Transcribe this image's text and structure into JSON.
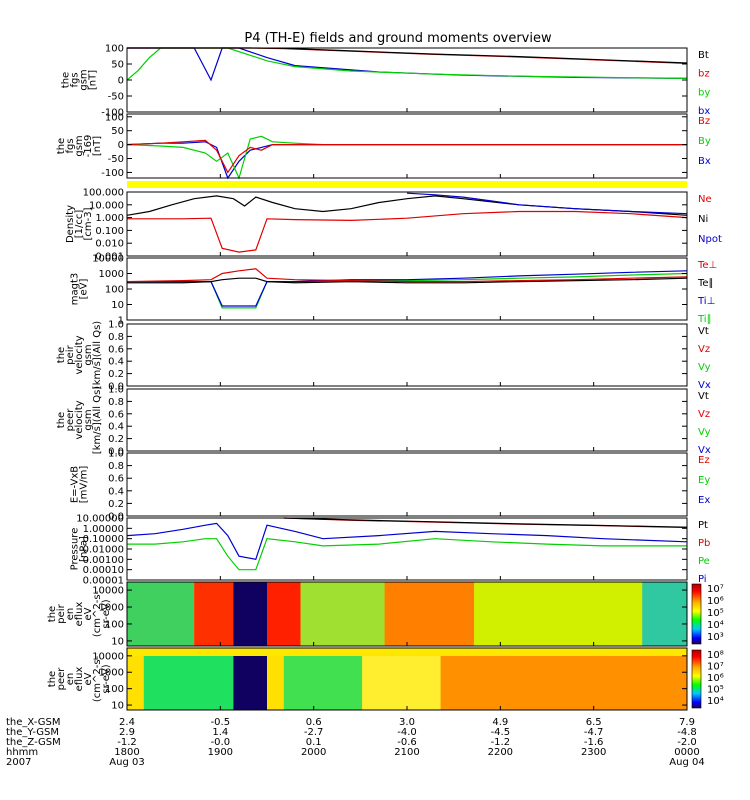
{
  "title": "P4 (TH-E) fields and ground moments overview",
  "colors": {
    "black": "#000000",
    "red": "#e00000",
    "green": "#00d000",
    "blue": "#0000d0",
    "yellow": "#ffff00"
  },
  "chart_data": [
    {
      "type": "line",
      "name": "fgs",
      "ylabel_lines": [
        "the",
        "fgs",
        "gsm",
        "[nT]"
      ],
      "ylim": [
        -100,
        100
      ],
      "yticks": [
        "100",
        "50",
        "0",
        "-50",
        "-100"
      ],
      "legend": [
        {
          "label": "Bt",
          "color": "#000000"
        },
        {
          "label": "bz",
          "color": "#e00000"
        },
        {
          "label": "by",
          "color": "#00d000"
        },
        {
          "label": "bx",
          "color": "#0000d0"
        }
      ],
      "series": [
        {
          "name": "bx",
          "color": "#0000d0",
          "x": [
            0.0,
            0.12,
            0.15,
            0.17,
            0.2,
            0.25,
            0.3,
            0.45,
            0.6,
            0.8,
            1.0
          ],
          "y": [
            100,
            100,
            0,
            100,
            100,
            70,
            45,
            25,
            15,
            8,
            5
          ]
        },
        {
          "name": "by",
          "color": "#00d000",
          "x": [
            0.0,
            0.02,
            0.04,
            0.06,
            0.08,
            0.1,
            0.14,
            0.18,
            0.25,
            0.3,
            0.4,
            0.55,
            0.7,
            0.85,
            1.0
          ],
          "y": [
            0,
            30,
            70,
            100,
            100,
            100,
            100,
            100,
            60,
            42,
            28,
            18,
            12,
            8,
            5
          ]
        },
        {
          "name": "bz",
          "color": "#e00000",
          "x": [
            0.0,
            0.14,
            0.18,
            0.22,
            0.28,
            0.4,
            0.55,
            0.7,
            0.85,
            1.0
          ],
          "y": [
            100,
            100,
            100,
            100,
            98,
            90,
            80,
            72,
            62,
            52
          ]
        },
        {
          "name": "Bt",
          "color": "#000000",
          "x": [
            0.0,
            0.14,
            0.18,
            0.22,
            0.28,
            0.4,
            0.55,
            0.7,
            0.85,
            1.0
          ],
          "y": [
            100,
            100,
            100,
            100,
            99,
            91,
            81,
            73,
            63,
            53
          ]
        }
      ]
    },
    {
      "type": "line",
      "name": "fgs-169",
      "ylabel_lines": [
        "the",
        "fgs",
        "gsm",
        "-169",
        "[nT]"
      ],
      "ylim": [
        -120,
        110
      ],
      "yticks": [
        "100",
        "50",
        "0",
        "-50",
        "-100"
      ],
      "legend": [
        {
          "label": "Bz",
          "color": "#e00000"
        },
        {
          "label": "By",
          "color": "#00d000"
        },
        {
          "label": "Bx",
          "color": "#0000d0"
        }
      ],
      "series": [
        {
          "name": "Bx",
          "color": "#0000d0",
          "x": [
            0.0,
            0.06,
            0.1,
            0.14,
            0.16,
            0.18,
            0.2,
            0.22,
            0.24,
            0.26,
            0.3,
            0.35,
            0.45,
            0.6,
            0.8,
            1.0
          ],
          "y": [
            0,
            5,
            5,
            10,
            -10,
            -120,
            -60,
            -20,
            -10,
            0,
            0,
            0,
            0,
            0,
            0,
            0
          ]
        },
        {
          "name": "By",
          "color": "#00d000",
          "x": [
            0.0,
            0.06,
            0.1,
            0.14,
            0.16,
            0.18,
            0.2,
            0.22,
            0.24,
            0.26,
            0.3,
            0.35,
            0.45,
            0.6,
            0.8,
            1.0
          ],
          "y": [
            0,
            -5,
            -10,
            -30,
            -60,
            -30,
            -120,
            20,
            30,
            10,
            5,
            0,
            0,
            0,
            0,
            0
          ]
        },
        {
          "name": "Bz",
          "color": "#e00000",
          "x": [
            0.0,
            0.06,
            0.1,
            0.14,
            0.16,
            0.18,
            0.2,
            0.22,
            0.24,
            0.26,
            0.3,
            0.35,
            0.45,
            0.6,
            0.8,
            1.0
          ],
          "y": [
            0,
            5,
            10,
            15,
            -20,
            -100,
            -40,
            -10,
            -20,
            0,
            0,
            0,
            0,
            0,
            0,
            0
          ]
        }
      ]
    },
    {
      "type": "line",
      "name": "density",
      "ylabel_lines": [
        "Density",
        "[1/cc]",
        "[cm-3]"
      ],
      "scale": "log",
      "ylim": [
        0.001,
        100
      ],
      "yticks": [
        "100.000",
        "10.000",
        "1.000",
        "0.100",
        "0.010",
        "0.001"
      ],
      "legend": [
        {
          "label": "Ne",
          "color": "#e00000"
        },
        {
          "label": "Ni",
          "color": "#000000"
        },
        {
          "label": "Npot",
          "color": "#0000d0"
        }
      ],
      "series": [
        {
          "name": "Ni",
          "color": "#000000",
          "x": [
            0.0,
            0.04,
            0.08,
            0.12,
            0.16,
            0.19,
            0.21,
            0.23,
            0.26,
            0.3,
            0.35,
            0.4,
            0.45,
            0.5,
            0.55,
            0.6,
            0.7,
            0.8,
            0.9,
            1.0
          ],
          "y": [
            1.5,
            3,
            10,
            30,
            50,
            30,
            8,
            40,
            15,
            5,
            3,
            5,
            15,
            30,
            50,
            30,
            10,
            5,
            3,
            1.5
          ]
        },
        {
          "name": "Ne",
          "color": "#e00000",
          "x": [
            0.0,
            0.1,
            0.15,
            0.17,
            0.2,
            0.23,
            0.25,
            0.3,
            0.4,
            0.5,
            0.6,
            0.7,
            0.8,
            0.9,
            1.0
          ],
          "y": [
            0.8,
            0.8,
            0.9,
            0.004,
            0.002,
            0.003,
            0.8,
            0.7,
            0.6,
            0.9,
            2,
            3,
            3,
            2,
            1
          ]
        },
        {
          "name": "Npot",
          "color": "#0000d0",
          "x": [
            0.5,
            0.55,
            0.6,
            0.65,
            0.7,
            0.8,
            0.9,
            1.0
          ],
          "y": [
            80,
            60,
            40,
            20,
            10,
            5,
            3,
            2
          ]
        }
      ]
    },
    {
      "type": "line",
      "name": "magt3",
      "ylabel_lines": [
        "magt3",
        "[eV]"
      ],
      "scale": "log",
      "ylim": [
        1,
        10000
      ],
      "yticks": [
        "10000",
        "1000",
        "100",
        "10",
        "1"
      ],
      "legend": [
        {
          "label": "Te⊥",
          "color": "#e00000"
        },
        {
          "label": "Te∥",
          "color": "#000000"
        },
        {
          "label": "Ti⊥",
          "color": "#0000d0"
        },
        {
          "label": "Ti∥",
          "color": "#00d000"
        }
      ],
      "series": [
        {
          "name": "Ti∥",
          "color": "#00d000",
          "x": [
            0.0,
            0.1,
            0.15,
            0.17,
            0.2,
            0.23,
            0.25,
            0.3,
            0.4,
            0.5,
            0.6,
            0.7,
            0.8,
            0.9,
            1.0
          ],
          "y": [
            300,
            300,
            300,
            6,
            6,
            6,
            300,
            300,
            350,
            350,
            400,
            500,
            600,
            800,
            1000
          ]
        },
        {
          "name": "Ti⊥",
          "color": "#0000d0",
          "x": [
            0.0,
            0.1,
            0.15,
            0.17,
            0.2,
            0.23,
            0.25,
            0.3,
            0.4,
            0.5,
            0.6,
            0.7,
            0.8,
            0.9,
            1.0
          ],
          "y": [
            300,
            300,
            300,
            8,
            8,
            8,
            300,
            300,
            400,
            400,
            500,
            700,
            900,
            1200,
            1500
          ]
        },
        {
          "name": "Te∥",
          "color": "#000000",
          "x": [
            0.0,
            0.1,
            0.15,
            0.17,
            0.2,
            0.23,
            0.25,
            0.3,
            0.4,
            0.5,
            0.6,
            0.7,
            0.8,
            0.9,
            1.0
          ],
          "y": [
            250,
            250,
            300,
            400,
            500,
            500,
            300,
            250,
            300,
            250,
            250,
            300,
            350,
            400,
            500
          ]
        },
        {
          "name": "Te⊥",
          "color": "#e00000",
          "x": [
            0.0,
            0.1,
            0.15,
            0.17,
            0.2,
            0.23,
            0.25,
            0.3,
            0.4,
            0.5,
            0.6,
            0.7,
            0.8,
            0.9,
            1.0
          ],
          "y": [
            300,
            350,
            400,
            1000,
            1500,
            2000,
            500,
            400,
            350,
            300,
            300,
            350,
            400,
            500,
            600
          ]
        }
      ]
    },
    {
      "type": "line",
      "name": "peir-velocity",
      "ylabel_lines": [
        "the",
        "peir",
        "velocity",
        "gsm",
        "[km/s](All Qs)"
      ],
      "ylim": [
        0,
        1
      ],
      "yticks": [
        "1.0",
        "0.8",
        "0.6",
        "0.4",
        "0.2",
        "0.0"
      ],
      "legend": [
        {
          "label": "Vt",
          "color": "#000000"
        },
        {
          "label": "Vz",
          "color": "#e00000"
        },
        {
          "label": "Vy",
          "color": "#00d000"
        },
        {
          "label": "Vx",
          "color": "#0000d0"
        }
      ],
      "series": []
    },
    {
      "type": "line",
      "name": "peer-velocity",
      "ylabel_lines": [
        "the",
        "peer",
        "velocity",
        "gsm",
        "[km/s](All Qs)"
      ],
      "ylim": [
        0,
        1
      ],
      "yticks": [
        "1.0",
        "0.8",
        "0.6",
        "0.4",
        "0.2",
        "0.0"
      ],
      "legend": [
        {
          "label": "Vt",
          "color": "#000000"
        },
        {
          "label": "Vz",
          "color": "#e00000"
        },
        {
          "label": "Vy",
          "color": "#00d000"
        },
        {
          "label": "Vx",
          "color": "#0000d0"
        }
      ],
      "series": []
    },
    {
      "type": "line",
      "name": "electric-field",
      "ylabel_lines": [
        "E=-VxB",
        "[mV/m]"
      ],
      "ylim": [
        0,
        1
      ],
      "yticks": [
        "1.0",
        "0.8",
        "0.6",
        "0.4",
        "0.2",
        "0.0"
      ],
      "legend": [
        {
          "label": "Ez",
          "color": "#e00000"
        },
        {
          "label": "Ey",
          "color": "#00d000"
        },
        {
          "label": "Ex",
          "color": "#0000d0"
        }
      ],
      "series": []
    },
    {
      "type": "line",
      "name": "pressure",
      "ylabel_lines": [
        "Pressure",
        "[nPa]"
      ],
      "scale": "log",
      "ylim": [
        1e-05,
        10
      ],
      "yticks": [
        "10.00000",
        "1.00000",
        "0.10000",
        "0.01000",
        "0.00100",
        "0.00010",
        "0.00001"
      ],
      "legend": [
        {
          "label": "Pt",
          "color": "#000000"
        },
        {
          "label": "Pb",
          "color": "#e00000"
        },
        {
          "label": "Pe",
          "color": "#00d000"
        },
        {
          "label": "Pi",
          "color": "#0000d0"
        }
      ],
      "series": [
        {
          "name": "Pi",
          "color": "#0000d0",
          "x": [
            0.0,
            0.05,
            0.1,
            0.14,
            0.16,
            0.18,
            0.2,
            0.23,
            0.25,
            0.3,
            0.35,
            0.45,
            0.55,
            0.65,
            0.75,
            0.85,
            1.0
          ],
          "y": [
            0.2,
            0.3,
            0.8,
            2,
            3,
            0.2,
            0.002,
            0.001,
            2,
            0.5,
            0.1,
            0.2,
            0.5,
            0.3,
            0.2,
            0.1,
            0.05
          ]
        },
        {
          "name": "Pe",
          "color": "#00d000",
          "x": [
            0.0,
            0.05,
            0.1,
            0.14,
            0.16,
            0.18,
            0.2,
            0.23,
            0.25,
            0.3,
            0.35,
            0.45,
            0.55,
            0.65,
            0.75,
            0.85,
            1.0
          ],
          "y": [
            0.03,
            0.03,
            0.05,
            0.1,
            0.1,
            0.002,
            0.0001,
            0.0001,
            0.1,
            0.05,
            0.02,
            0.03,
            0.1,
            0.05,
            0.03,
            0.02,
            0.02
          ]
        },
        {
          "name": "Pb",
          "color": "#e00000",
          "x": [
            0.28,
            0.4,
            0.55,
            0.7,
            0.85,
            1.0
          ],
          "y": [
            12,
            6,
            4,
            2.5,
            1.8,
            1.2
          ]
        },
        {
          "name": "Pt",
          "color": "#000000",
          "x": [
            0.28,
            0.4,
            0.55,
            0.7,
            0.85,
            1.0
          ],
          "y": [
            13,
            6.5,
            4.3,
            2.7,
            1.9,
            1.3
          ]
        }
      ]
    },
    {
      "type": "heatmap",
      "name": "peir-spectrogram",
      "ylabel_lines": [
        "the",
        "peir",
        "en",
        "eflux",
        "eV",
        "(cm^2-s-",
        "sr-eV)"
      ],
      "scale": "log",
      "ylim": [
        5,
        30000
      ],
      "yticks": [
        "10000",
        "1000",
        "100",
        "10"
      ],
      "colorbar_ticks": [
        "10⁷",
        "10⁶",
        "10⁵",
        "10⁴",
        "10³"
      ]
    },
    {
      "type": "heatmap",
      "name": "peer-spectrogram",
      "ylabel_lines": [
        "the",
        "peer",
        "en",
        "eflux",
        "eV",
        "(cm^2-s-",
        "sr-eV)"
      ],
      "scale": "log",
      "ylim": [
        5,
        30000
      ],
      "yticks": [
        "10000",
        "1000",
        "100",
        "10"
      ],
      "colorbar_ticks": [
        "10⁸",
        "10⁷",
        "10⁶",
        "10⁵",
        "10⁴"
      ]
    }
  ],
  "xaxis": {
    "row_labels": [
      "the_X-GSM",
      "the_Y-GSM",
      "the_Z-GSM",
      "hhmm",
      "2007"
    ],
    "columns": [
      {
        "values": [
          "2.4",
          "2.9",
          "-1.2",
          "1800",
          "Aug 03"
        ]
      },
      {
        "values": [
          "-0.5",
          "1.4",
          "-0.0",
          "1900",
          ""
        ]
      },
      {
        "values": [
          "0.6",
          "-2.7",
          "0.1",
          "2000",
          ""
        ]
      },
      {
        "values": [
          "3.0",
          "-4.0",
          "-0.6",
          "2100",
          ""
        ]
      },
      {
        "values": [
          "4.9",
          "-4.5",
          "-1.2",
          "2200",
          ""
        ]
      },
      {
        "values": [
          "6.5",
          "-4.7",
          "-1.6",
          "2300",
          ""
        ]
      },
      {
        "values": [
          "7.9",
          "-4.8",
          "-2.0",
          "0000",
          "Aug 04"
        ]
      }
    ]
  }
}
